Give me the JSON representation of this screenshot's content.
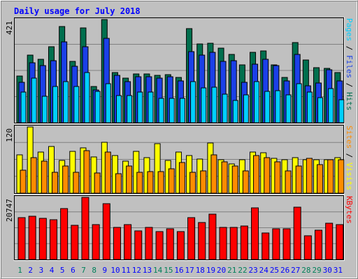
{
  "chart_data": {
    "type": "bar",
    "title": "Daily usage for July 2018",
    "categories": [
      "1",
      "2",
      "3",
      "4",
      "5",
      "6",
      "7",
      "8",
      "9",
      "10",
      "11",
      "12",
      "13",
      "14",
      "15",
      "16",
      "17",
      "18",
      "19",
      "20",
      "21",
      "22",
      "23",
      "24",
      "25",
      "26",
      "27",
      "28",
      "29",
      "30",
      "31"
    ],
    "weekend_days": [
      1,
      7,
      8,
      14,
      15,
      21,
      22,
      28,
      29
    ],
    "panels": [
      {
        "name": "hits-files-pages",
        "max_label": "421",
        "ylim": [
          0,
          421
        ],
        "series": [
          {
            "name": "Hits",
            "color": "#006f4e",
            "values": [
              190,
              275,
              258,
              311,
              392,
              249,
              388,
              148,
              421,
              206,
              181,
              200,
              199,
              194,
              196,
              185,
              385,
              321,
              324,
              305,
              278,
              235,
              288,
              293,
              235,
              186,
              328,
              255,
              226,
              223,
              206
            ]
          },
          {
            "name": "Files",
            "color": "#1b40e8",
            "values": [
              165,
              244,
              234,
              254,
              330,
              230,
              311,
              134,
              344,
              193,
              168,
              189,
              188,
              181,
              188,
              172,
              291,
              276,
              288,
              250,
              252,
              166,
              240,
              258,
              233,
              172,
              280,
              150,
              162,
              215,
              172
            ]
          },
          {
            "name": "Pages",
            "color": "#00cfff",
            "values": [
              125,
              181,
              109,
              148,
              168,
              147,
              204,
              128,
              160,
              111,
              111,
              124,
              125,
              100,
              100,
              99,
              168,
              143,
              145,
              116,
              90,
              115,
              168,
              128,
              130,
              113,
              160,
              125,
              101,
              138,
              93
            ]
          }
        ]
      },
      {
        "name": "visits-sites",
        "max_label": "120",
        "ylim": [
          0,
          120
        ],
        "series": [
          {
            "name": "Visits",
            "color": "#ffff00",
            "values": [
              70,
              120,
              74,
              84,
              59,
              76,
              82,
              66,
              92,
              68,
              58,
              76,
              64,
              90,
              59,
              74,
              68,
              62,
              91,
              61,
              53,
              60,
              74,
              73,
              63,
              60,
              65,
              61,
              60,
              61,
              64
            ]
          },
          {
            "name": "Sites",
            "color": "#ff8c00",
            "values": [
              42,
              64,
              58,
              38,
              49,
              38,
              77,
              37,
              74,
              35,
              49,
              38,
              39,
              39,
              44,
              56,
              38,
              40,
              69,
              57,
              49,
              40,
              68,
              64,
              57,
              40,
              49,
              63,
              52,
              61,
              61
            ]
          }
        ]
      },
      {
        "name": "kbytes",
        "max_label": "20747",
        "ylim": [
          0,
          20747
        ],
        "series": [
          {
            "name": "KBytes",
            "color": "#ff0000",
            "values": [
              14052,
              14454,
              13652,
              13251,
              17068,
              11441,
              20747,
              11642,
              18537,
              10839,
              11642,
              9636,
              10839,
              9435,
              10237,
              9435,
              14052,
              12249,
              15264,
              10839,
              10839,
              11240,
              17268,
              8833,
              10237,
              10237,
              17469,
              7830,
              9836,
              12049,
              11642
            ]
          }
        ]
      }
    ],
    "right_labels": {
      "panel1": [
        {
          "text": "Pages",
          "color": "#00cfff"
        },
        {
          "text": " / ",
          "color": "#000000"
        },
        {
          "text": "Files",
          "color": "#1b40e8"
        },
        {
          "text": " / ",
          "color": "#000000"
        },
        {
          "text": "Hits",
          "color": "#006f4e"
        }
      ],
      "panel2": [
        {
          "text": "Sites",
          "color": "#ff8c00"
        },
        {
          "text": " / ",
          "color": "#000000"
        },
        {
          "text": "Visits",
          "color": "#ffff00"
        }
      ],
      "panel3": [
        {
          "text": "KBytes",
          "color": "#ff0000"
        }
      ]
    },
    "colors": {
      "background": "#c0c0c0",
      "title": "#0000ff",
      "weekday_label": "#0000ff",
      "weekend_label": "#00805a",
      "gridline": "#808080",
      "bar_outline": "#000000"
    },
    "grid": true
  }
}
